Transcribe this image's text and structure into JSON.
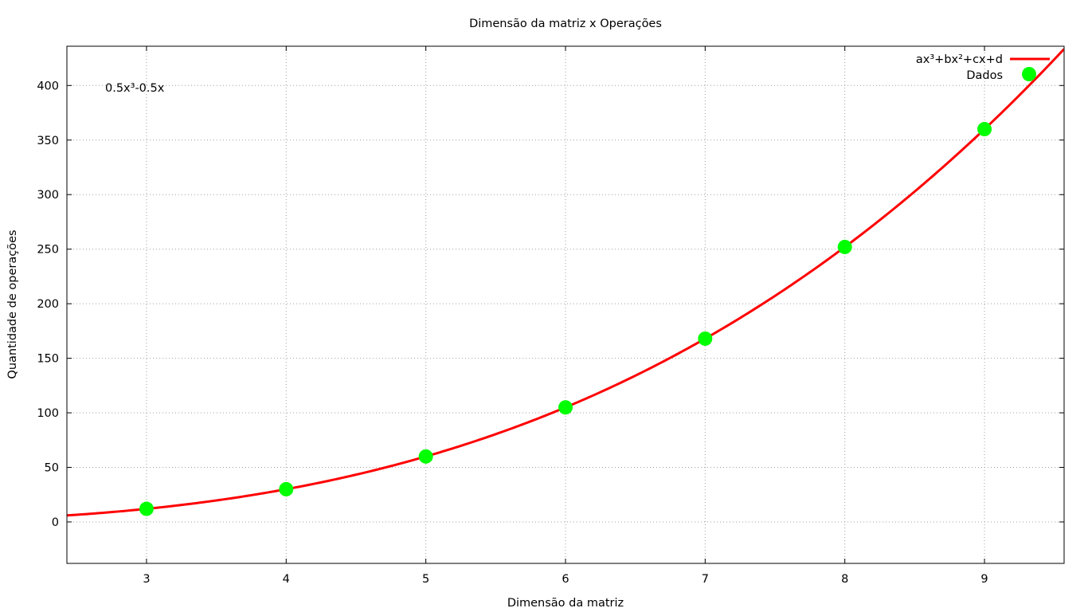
{
  "chart_data": {
    "type": "scatter",
    "title": "Dimensão da matriz x Operações",
    "xlabel": "Dimensão da matriz",
    "ylabel": "Quantidade de operações",
    "xlim": [
      2.43,
      9.57
    ],
    "ylim": [
      -38,
      436
    ],
    "xticks": [
      3,
      4,
      5,
      6,
      7,
      8,
      9
    ],
    "yticks": [
      0,
      50,
      100,
      150,
      200,
      250,
      300,
      350,
      400
    ],
    "grid": true,
    "legend_position": "top-right",
    "annotation": "0.5x³-0.5x",
    "series": [
      {
        "name": "ax³+bx²+cx+d",
        "kind": "line",
        "color": "#ff0000",
        "coefficients": {
          "a": 0.5,
          "b": 0,
          "c": -0.5,
          "d": 0
        }
      },
      {
        "name": "Dados",
        "kind": "points",
        "color": "#00ff00",
        "x": [
          3,
          4,
          5,
          6,
          7,
          8,
          9
        ],
        "y": [
          12,
          30,
          60,
          105,
          168,
          252,
          360
        ]
      }
    ]
  }
}
